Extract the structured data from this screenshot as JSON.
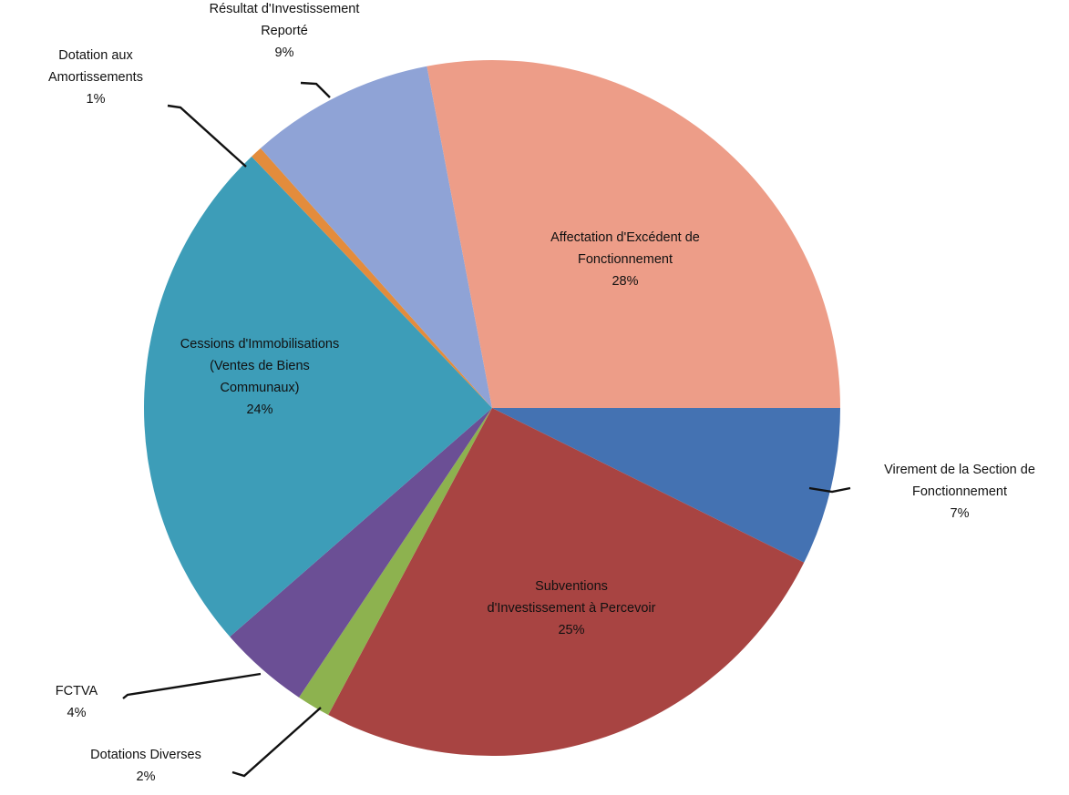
{
  "chart_data": {
    "type": "pie",
    "title": "",
    "start_angle_deg": 0,
    "direction": "clockwise",
    "slices": [
      {
        "label": [
          "Virement de la Section de",
          "Fonctionnement"
        ],
        "value_label": "7%",
        "value": 7.33,
        "color": "#4472b2"
      },
      {
        "label": [
          "Subventions",
          "d'Investissement à Percevoir"
        ],
        "value_label": "25%",
        "value": 25.47,
        "color": "#a84442"
      },
      {
        "label": [
          "Dotations Diverses"
        ],
        "value_label": "2%",
        "value": 1.56,
        "color": "#8db24f"
      },
      {
        "label": [
          "FCTVA"
        ],
        "value_label": "4%",
        "value": 4.22,
        "color": "#6b4f95"
      },
      {
        "label": [
          "Cessions d'Immobilisations",
          "(Ventes de Biens",
          "Communaux)"
        ],
        "value_label": "24%",
        "value": 24.28,
        "color": "#3d9db8"
      },
      {
        "label": [
          "Dotation aux",
          "Amortissements"
        ],
        "value_label": "1%",
        "value": 0.56,
        "color": "#e38c3c"
      },
      {
        "label": [
          "Résultat d'Investissement",
          "Reporté"
        ],
        "value_label": "9%",
        "value": 8.58,
        "color": "#8fa3d6"
      },
      {
        "label": [
          "Affectation d'Excédent de",
          "Fonctionnement"
        ],
        "value_label": "28%",
        "value": 28.0,
        "color": "#ed9d88"
      }
    ]
  }
}
